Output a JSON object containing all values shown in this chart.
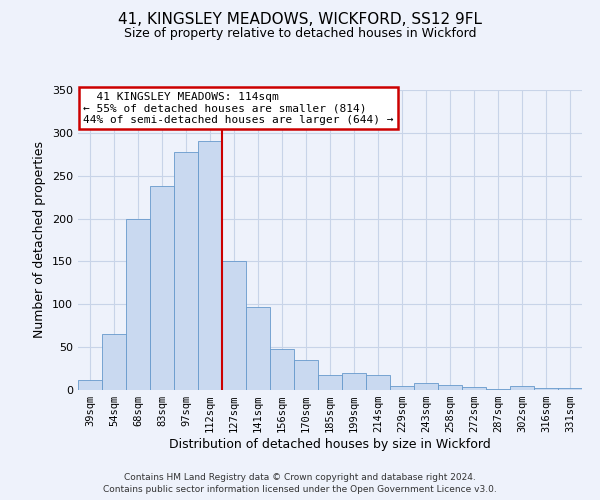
{
  "title": "41, KINGSLEY MEADOWS, WICKFORD, SS12 9FL",
  "subtitle": "Size of property relative to detached houses in Wickford",
  "xlabel": "Distribution of detached houses by size in Wickford",
  "ylabel": "Number of detached properties",
  "bar_color": "#c9d9f0",
  "bar_edge_color": "#6699cc",
  "categories": [
    "39sqm",
    "54sqm",
    "68sqm",
    "83sqm",
    "97sqm",
    "112sqm",
    "127sqm",
    "141sqm",
    "156sqm",
    "170sqm",
    "185sqm",
    "199sqm",
    "214sqm",
    "229sqm",
    "243sqm",
    "258sqm",
    "272sqm",
    "287sqm",
    "302sqm",
    "316sqm",
    "331sqm"
  ],
  "values": [
    12,
    65,
    200,
    238,
    278,
    291,
    150,
    97,
    48,
    35,
    18,
    20,
    18,
    5,
    8,
    6,
    3,
    1,
    5,
    2,
    2
  ],
  "bar_width": 1.0,
  "ylim": [
    0,
    350
  ],
  "yticks": [
    0,
    50,
    100,
    150,
    200,
    250,
    300,
    350
  ],
  "vline_x": 5.5,
  "vline_color": "#cc0000",
  "annotation_title": "41 KINGSLEY MEADOWS: 114sqm",
  "annotation_line1": "← 55% of detached houses are smaller (814)",
  "annotation_line2": "44% of semi-detached houses are larger (644) →",
  "annotation_box_color": "#ffffff",
  "annotation_box_edge": "#cc0000",
  "grid_color": "#c8d4e8",
  "background_color": "#eef2fb",
  "footer1": "Contains HM Land Registry data © Crown copyright and database right 2024.",
  "footer2": "Contains public sector information licensed under the Open Government Licence v3.0."
}
